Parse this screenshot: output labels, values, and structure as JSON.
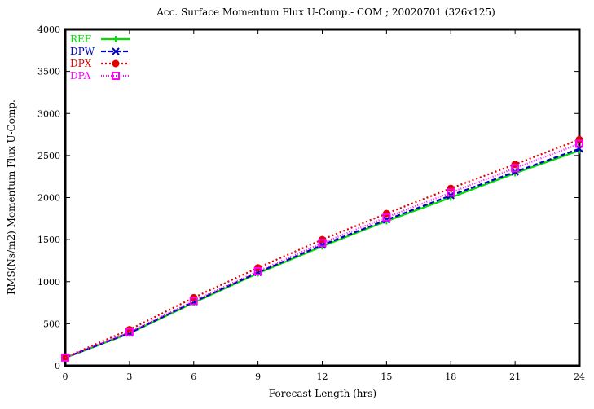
{
  "chart_data": {
    "type": "line",
    "title": "Acc. Surface Momentum Flux U-Comp.- COM ; 20020701 (326x125)",
    "xlabel": "Forecast Length (hrs)",
    "ylabel": "RMS(Ns/m2) Momentum Flux U-Comp.",
    "x": [
      0,
      3,
      6,
      9,
      12,
      15,
      18,
      21,
      24
    ],
    "xlim": [
      0,
      24
    ],
    "ylim": [
      0,
      4000
    ],
    "xticks": [
      0,
      3,
      6,
      9,
      12,
      15,
      18,
      21,
      24
    ],
    "yticks": [
      0,
      500,
      1000,
      1500,
      2000,
      2500,
      3000,
      3500,
      4000
    ],
    "grid": false,
    "legend_position": "top-left",
    "series": [
      {
        "name": "REF",
        "color": "#00e000",
        "dash": "",
        "marker": "plus",
        "values": [
          95,
          385,
          750,
          1100,
          1420,
          1720,
          2000,
          2290,
          2560
        ]
      },
      {
        "name": "DPW",
        "color": "#0000c0",
        "dash": "6,3",
        "marker": "cross",
        "values": [
          97,
          390,
          760,
          1110,
          1435,
          1735,
          2025,
          2305,
          2580
        ]
      },
      {
        "name": "DPX",
        "color": "#e00000",
        "dash": "2,3",
        "marker": "circle",
        "values": [
          100,
          430,
          810,
          1165,
          1500,
          1810,
          2110,
          2395,
          2690
        ]
      },
      {
        "name": "DPA",
        "color": "#ff00ff",
        "dash": "1,2",
        "marker": "square",
        "values": [
          98,
          400,
          770,
          1125,
          1460,
          1765,
          2060,
          2350,
          2640
        ]
      }
    ]
  }
}
